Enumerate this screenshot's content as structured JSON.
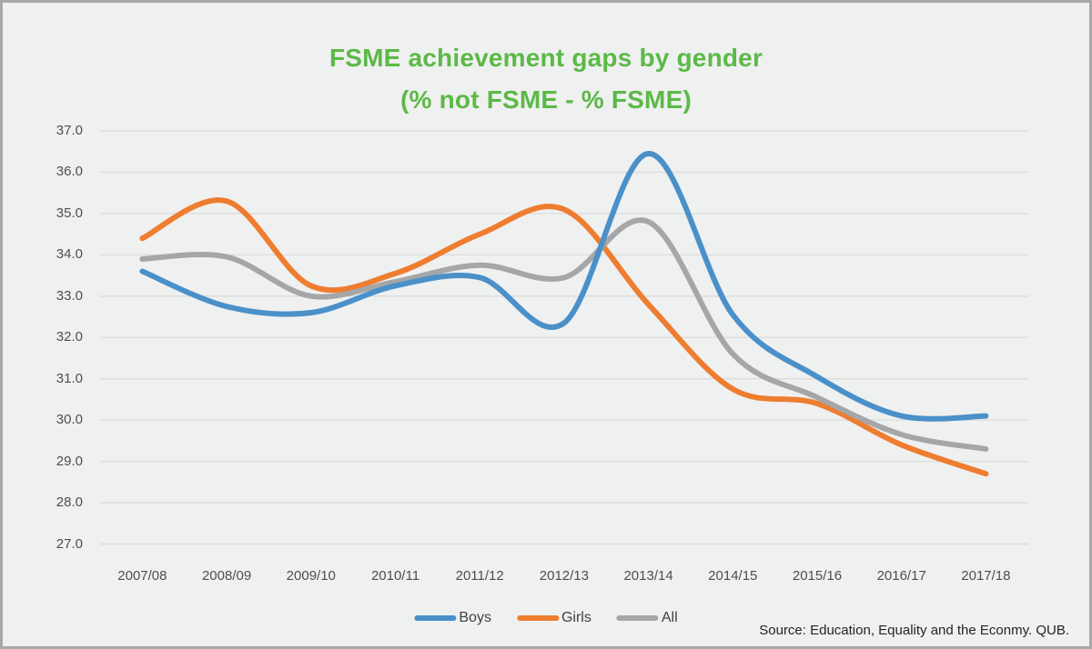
{
  "title": {
    "line1": "FSME achievement gaps by gender",
    "line2": "(% not FSME - % FSME)",
    "color": "#5cb947"
  },
  "source": "Source: Education, Equality and the Econmy. QUB.",
  "legend": [
    {
      "label": "Boys",
      "color": "#4a90c9"
    },
    {
      "label": "Girls",
      "color": "#ee7d30"
    },
    {
      "label": "All",
      "color": "#a5a6a7"
    }
  ],
  "colors": {
    "background": "#eff0f0",
    "frame_border": "#a6a8aa",
    "gridline": "#dbdcdc",
    "axis_text": "#4d4e50",
    "source_text": "#262424"
  },
  "chart_data": {
    "type": "line",
    "title": "FSME achievement gaps by gender (% not FSME - % FSME)",
    "categories": [
      "2007/08",
      "2008/09",
      "2009/10",
      "2010/11",
      "2011/12",
      "2012/13",
      "2013/14",
      "2014/15",
      "2015/16",
      "2016/17",
      "2017/18"
    ],
    "series": [
      {
        "name": "Boys",
        "color": "#4a90c9",
        "values": [
          33.6,
          32.75,
          32.6,
          33.25,
          33.45,
          32.35,
          36.45,
          32.55,
          31.05,
          30.1,
          30.1
        ]
      },
      {
        "name": "Girls",
        "color": "#ee7d30",
        "values": [
          34.4,
          35.3,
          33.25,
          33.55,
          34.5,
          35.1,
          32.8,
          30.75,
          30.4,
          29.4,
          28.7
        ]
      },
      {
        "name": "All",
        "color": "#a5a6a7",
        "values": [
          33.9,
          33.95,
          33.0,
          33.35,
          33.75,
          33.45,
          34.8,
          31.6,
          30.55,
          29.65,
          29.3
        ]
      }
    ],
    "xlabel": "",
    "ylabel": "",
    "ylim": [
      27.0,
      37.0
    ],
    "ytick_step": 1.0,
    "ytick_labels": [
      "37.0",
      "36.0",
      "35.0",
      "34.0",
      "33.0",
      "32.0",
      "31.0",
      "30.0",
      "29.0",
      "28.0",
      "27.0"
    ],
    "grid": true,
    "line_style": "smooth",
    "markers": false,
    "legend_position": "bottom-center"
  }
}
